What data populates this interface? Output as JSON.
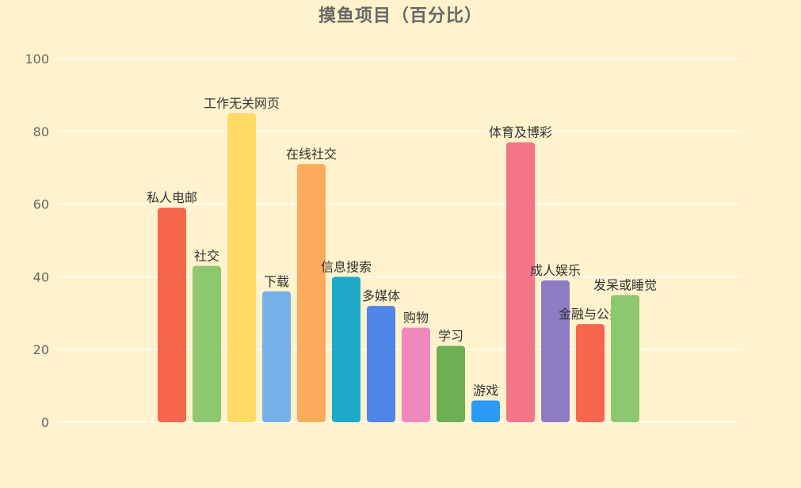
{
  "chart_data": {
    "type": "bar",
    "title": "摸鱼项目（百分比）",
    "ylim": [
      0,
      100
    ],
    "yticks": [
      0,
      20,
      40,
      60,
      80,
      100
    ],
    "grid": true,
    "categories": [
      "私人电邮",
      "社交",
      "工作无关网页",
      "下载",
      "在线社交",
      "信息搜索",
      "多媒体",
      "购物",
      "学习",
      "游戏",
      "体育及博彩",
      "成人娱乐",
      "金融与公共",
      "发呆或睡觉"
    ],
    "values": [
      59,
      43,
      85,
      36,
      71,
      40,
      32,
      26,
      21,
      6,
      77,
      39,
      27,
      35
    ],
    "colors": [
      "#f7664c",
      "#8dc86f",
      "#ffd966",
      "#76b0e8",
      "#fbab5b",
      "#1ea8c7",
      "#4f86e8",
      "#f188bd",
      "#6eaf52",
      "#2b9af5",
      "#f47587",
      "#8e7cc3",
      "#f7664c",
      "#8dc86f"
    ]
  }
}
